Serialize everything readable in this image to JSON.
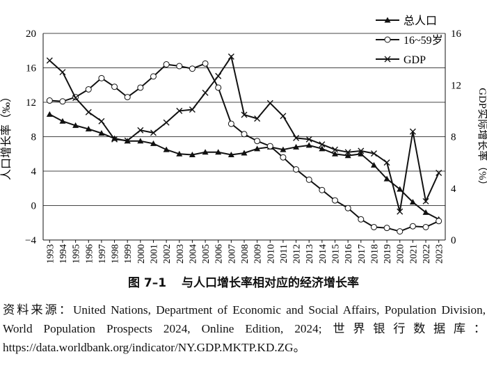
{
  "chart_data": {
    "type": "line",
    "title": "",
    "x": [
      "1993",
      "1994",
      "1995",
      "1996",
      "1997",
      "1998",
      "1999",
      "2000",
      "2001",
      "2002",
      "2003",
      "2004",
      "2005",
      "2006",
      "2007",
      "2008",
      "2009",
      "2010",
      "2011",
      "2012",
      "2013",
      "2014",
      "2015",
      "2016",
      "2017",
      "2018",
      "2019",
      "2020",
      "2021",
      "2022",
      "2023"
    ],
    "left_axis": {
      "label": "人口增长率（‰）",
      "range": [
        -4,
        20
      ],
      "ticks": [
        "−4",
        "0",
        "4",
        "8",
        "12",
        "16",
        "20"
      ]
    },
    "right_axis": {
      "label": "GDP实际增长率（%）",
      "range": [
        0,
        16
      ],
      "ticks": [
        "0",
        "4",
        "8",
        "12",
        "16"
      ]
    },
    "series": [
      {
        "name": "总人口",
        "axis": "left",
        "marker": "triangle",
        "values": [
          10.6,
          9.8,
          9.3,
          8.9,
          8.4,
          7.8,
          7.5,
          7.5,
          7.2,
          6.5,
          6.0,
          5.9,
          6.2,
          6.2,
          5.9,
          6.1,
          6.6,
          6.8,
          6.5,
          6.8,
          7.0,
          6.6,
          6.0,
          5.8,
          6.0,
          4.7,
          3.1,
          1.9,
          0.4,
          -0.8,
          -1.6
        ]
      },
      {
        "name": "16~59岁",
        "axis": "left",
        "marker": "circle",
        "values": [
          12.2,
          12.1,
          12.6,
          13.5,
          14.8,
          13.8,
          12.6,
          13.7,
          15.0,
          16.4,
          16.2,
          15.9,
          16.5,
          13.7,
          9.5,
          8.3,
          7.5,
          6.9,
          5.6,
          4.2,
          3.0,
          1.8,
          0.6,
          -0.3,
          -1.6,
          -2.5,
          -2.6,
          -3.0,
          -2.4,
          -2.5,
          -1.8
        ]
      },
      {
        "name": "GDP",
        "axis": "right",
        "marker": "x",
        "values": [
          13.9,
          13.0,
          11.0,
          9.9,
          9.2,
          7.8,
          7.7,
          8.5,
          8.3,
          9.1,
          10.0,
          10.1,
          11.4,
          12.7,
          14.2,
          9.7,
          9.4,
          10.6,
          9.6,
          7.9,
          7.8,
          7.4,
          7.0,
          6.8,
          6.9,
          6.7,
          6.0,
          2.2,
          8.4,
          3.0,
          5.2
        ]
      }
    ],
    "legend_position": "top-right",
    "grid": "horizontal"
  },
  "caption": {
    "figure_no": "图 7–1",
    "title": "与人口增长率相对应的经济增长率"
  },
  "source_note": "资料来源：United Nations, Department of Economic and Social Affairs, Population Division, World Population Prospects 2024, Online Edition, 2024; 世界银行数据库：https://data.worldbank.org/indicator/NY.GDP.MKTP.KD.ZG。"
}
